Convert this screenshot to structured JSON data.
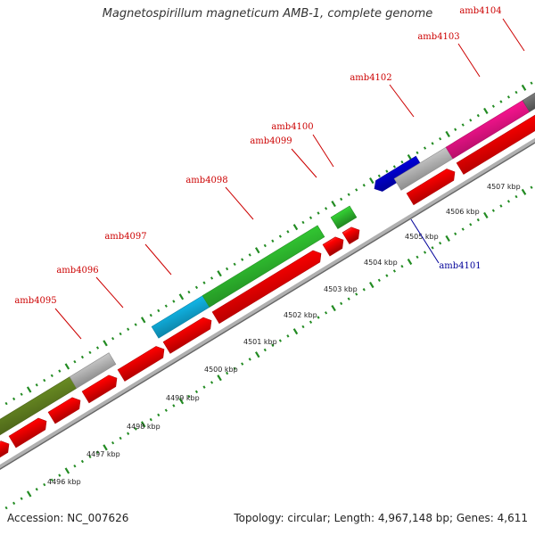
{
  "title": "Magnetospirillum magneticum AMB-1, complete genome",
  "footer": {
    "accession": "Accession: NC_007626",
    "summary": "Topology: circular; Length: 4,967,148 bp; Genes: 4,611"
  },
  "colors": {
    "gene_red": "#ff0000",
    "gene_green": "#33cc33",
    "gene_cyan": "#11bbee",
    "gene_grey": "#c8c8c8",
    "gene_olive": "#6b8e23",
    "gene_magenta": "#ff1493",
    "gene_blue": "#0000dd",
    "label_red": "#cc0000",
    "label_blue": "#000099",
    "backbone": "#888888",
    "tick_green": "#228b22"
  },
  "kbp_labels": [
    "4496 kbp",
    "4497 kbp",
    "4498 kbp",
    "4499 kbp",
    "4500 kbp",
    "4501 kbp",
    "4502 kbp",
    "4503 kbp",
    "4504 kbp",
    "4505 kbp",
    "4506 kbp",
    "4507 kbp"
  ],
  "gene_labels": [
    "amb4095",
    "amb4096",
    "amb4097",
    "amb4098",
    "amb4099",
    "amb4100",
    "amb4101",
    "amb4102",
    "amb4103",
    "amb4104"
  ]
}
